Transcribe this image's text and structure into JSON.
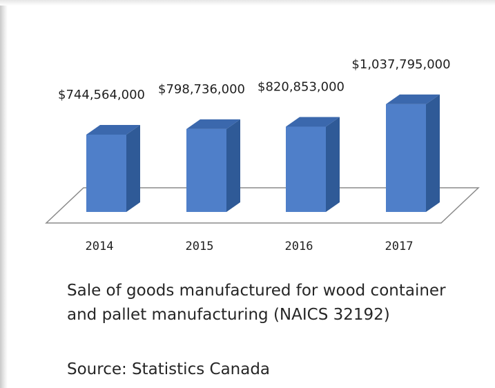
{
  "chart_data": {
    "type": "bar",
    "categories": [
      "2014",
      "2015",
      "2016",
      "2017"
    ],
    "values": [
      744564000,
      798736000,
      820853000,
      1037795000
    ],
    "data_labels": [
      "$744,564,000",
      "$798,736,000",
      "$820,853,000",
      "$1,037,795,000"
    ],
    "title": "",
    "xlabel": "",
    "ylabel": "",
    "ylim": [
      0,
      1100000000
    ],
    "grid": false,
    "legend": "none",
    "style": "3d-column",
    "bar_color": "#4f7fc9"
  },
  "caption": {
    "line1": "Sale of goods manufactured for wood container",
    "line2": "and pallet manufacturing (NAICS 32192)"
  },
  "source": "Source: Statistics Canada",
  "colors": {
    "bar_front": "#4f7fc9",
    "bar_side": "#2f5a97",
    "bar_top": "#3b68ad",
    "floor_stroke": "#8a8a8a"
  }
}
